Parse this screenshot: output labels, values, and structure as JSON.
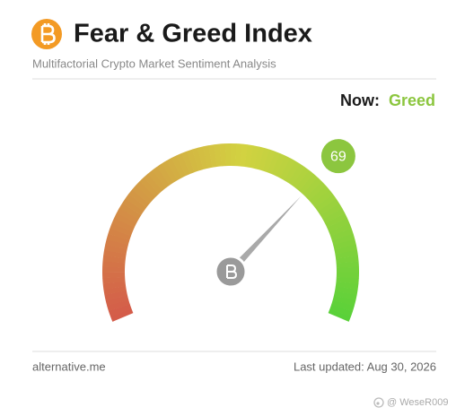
{
  "chart_data": {
    "type": "gauge",
    "title": "Fear & Greed Index",
    "subtitle": "Multifactorial Crypto Market Sentiment Analysis",
    "now_label": "Now:",
    "classification": "Greed",
    "value": 69,
    "ylim": [
      0,
      100
    ],
    "color": "#8cc63f",
    "source": "alternative.me",
    "updated": "Last updated: Aug 30, 2026",
    "watermark": "@ WeseR009"
  }
}
